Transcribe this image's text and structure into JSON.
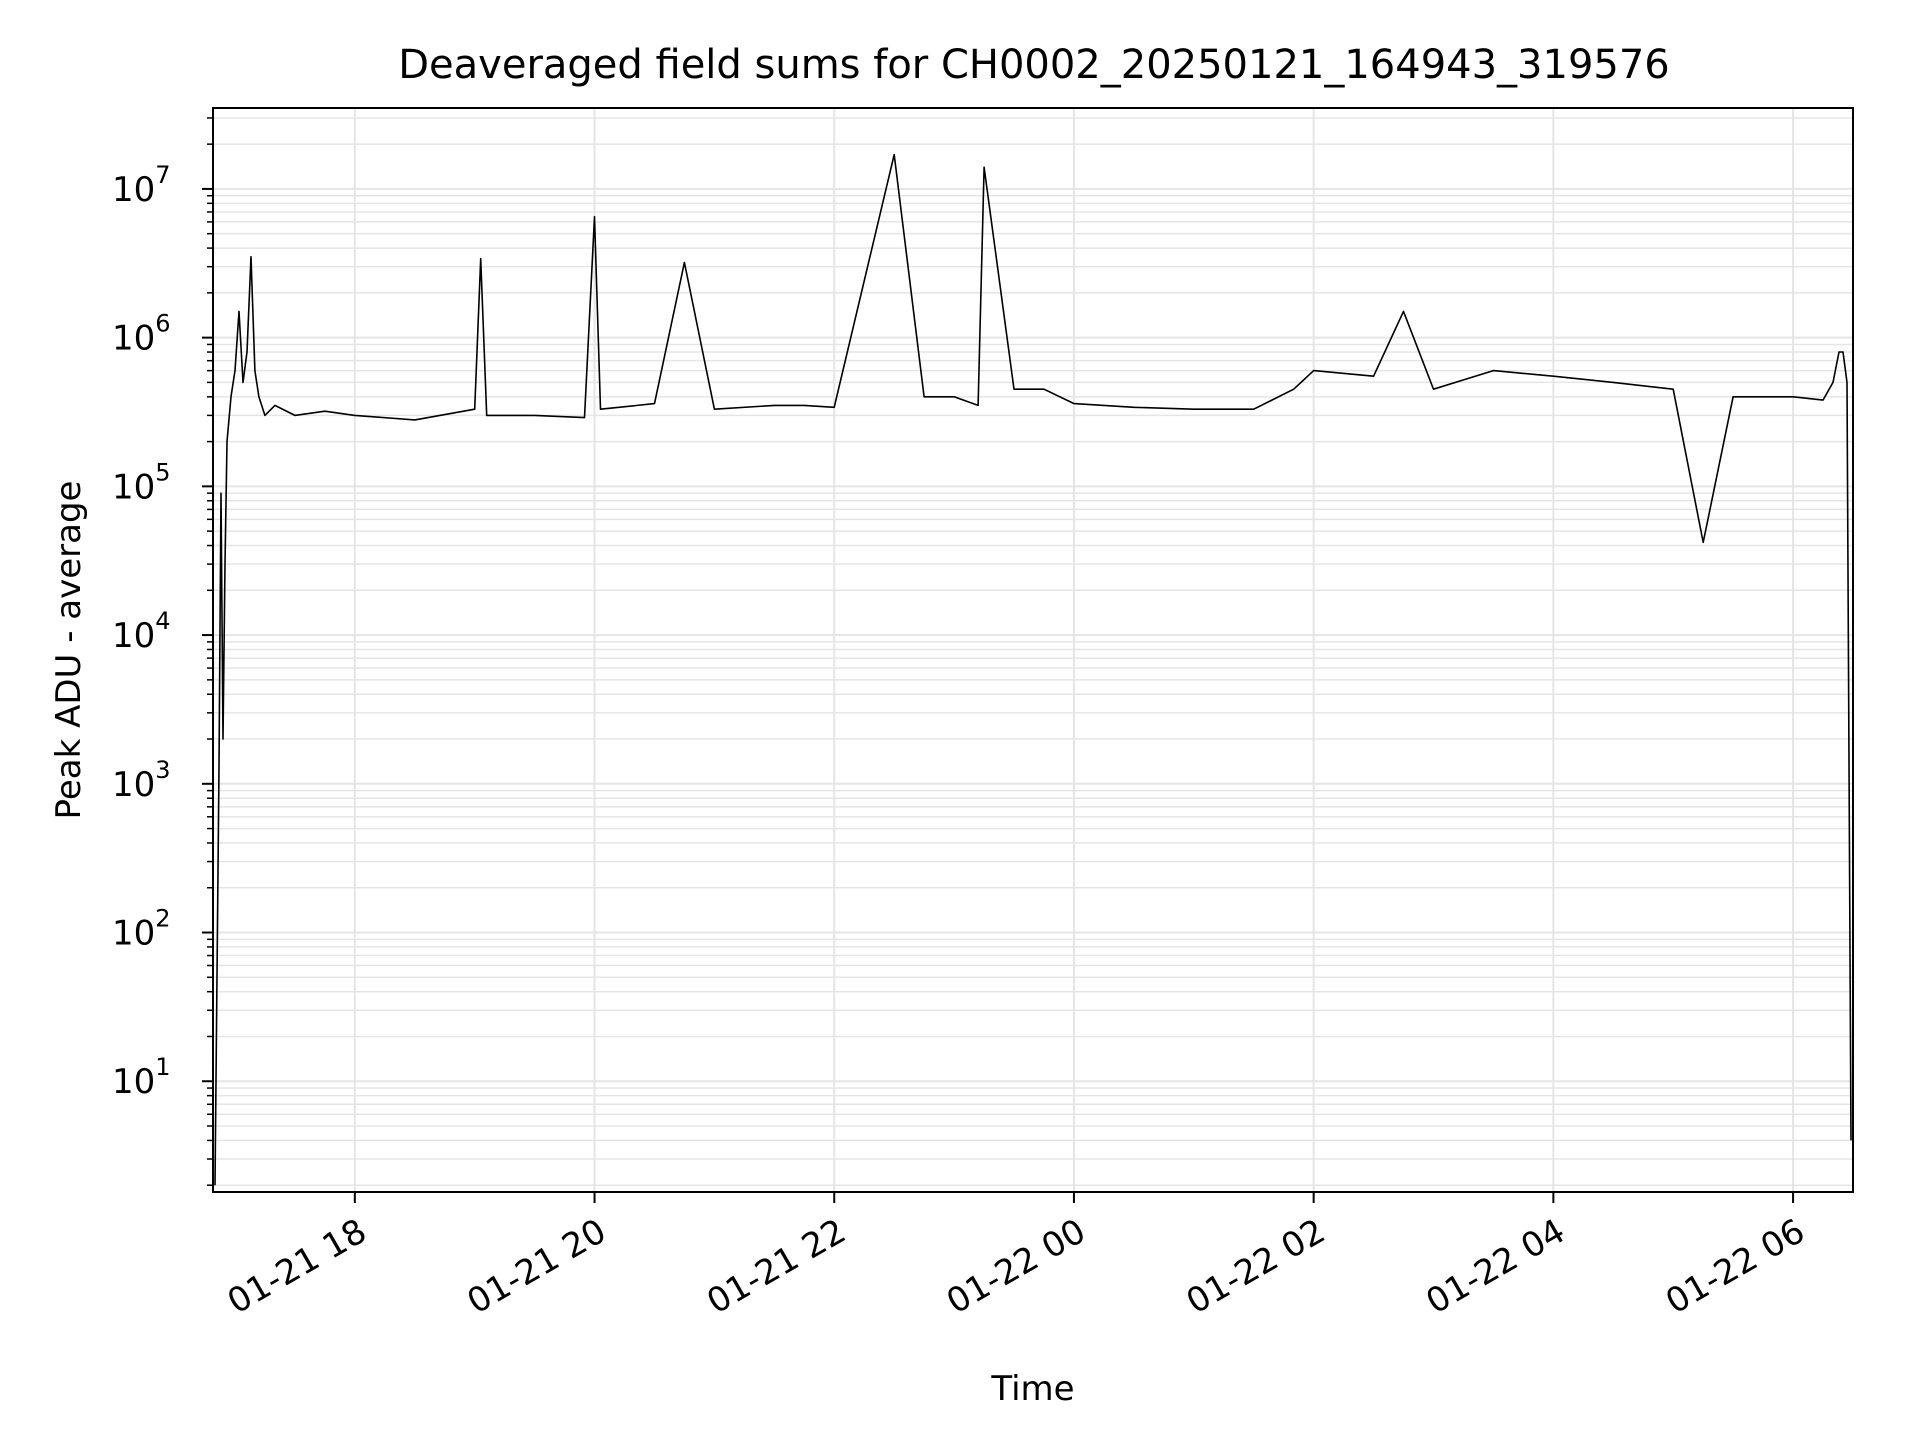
{
  "chart_data": {
    "type": "line",
    "title": "Deaveraged field sums for CH0002_20250121_164943_319576",
    "xlabel": "Time",
    "ylabel": "Peak ADU - average",
    "yscale": "log",
    "grid": true,
    "line_color": "#000000",
    "grid_color": "#e5e5e5",
    "xlim": [
      "2025-01-21 16:49",
      "2025-01-22 06:30"
    ],
    "ylim": [
      1.8,
      35000000
    ],
    "x_ticks": [
      {
        "value": "2025-01-21 18:00",
        "label": "01-21 18"
      },
      {
        "value": "2025-01-21 20:00",
        "label": "01-21 20"
      },
      {
        "value": "2025-01-21 22:00",
        "label": "01-21 22"
      },
      {
        "value": "2025-01-22 00:00",
        "label": "01-22 00"
      },
      {
        "value": "2025-01-22 02:00",
        "label": "01-22 02"
      },
      {
        "value": "2025-01-22 04:00",
        "label": "01-22 04"
      },
      {
        "value": "2025-01-22 06:00",
        "label": "01-22 06"
      }
    ],
    "y_ticks": [
      {
        "value": 10,
        "base": "10",
        "exp": "1"
      },
      {
        "value": 100,
        "base": "10",
        "exp": "2"
      },
      {
        "value": 1000,
        "base": "10",
        "exp": "3"
      },
      {
        "value": 10000,
        "base": "10",
        "exp": "4"
      },
      {
        "value": 100000,
        "base": "10",
        "exp": "5"
      },
      {
        "value": 1000000,
        "base": "10",
        "exp": "6"
      },
      {
        "value": 10000000,
        "base": "10",
        "exp": "7"
      }
    ],
    "series": [
      {
        "x": [
          "2025-01-21 16:50",
          "2025-01-21 16:52",
          "2025-01-21 16:53",
          "2025-01-21 16:54",
          "2025-01-21 16:55",
          "2025-01-21 16:56",
          "2025-01-21 16:58",
          "2025-01-21 17:00",
          "2025-01-21 17:02",
          "2025-01-21 17:04",
          "2025-01-21 17:06",
          "2025-01-21 17:08",
          "2025-01-21 17:10",
          "2025-01-21 17:12",
          "2025-01-21 17:15",
          "2025-01-21 17:20",
          "2025-01-21 17:30",
          "2025-01-21 17:45",
          "2025-01-21 18:00",
          "2025-01-21 18:30",
          "2025-01-21 19:00",
          "2025-01-21 19:03",
          "2025-01-21 19:06",
          "2025-01-21 19:30",
          "2025-01-21 19:55",
          "2025-01-21 20:00",
          "2025-01-21 20:03",
          "2025-01-21 20:30",
          "2025-01-21 20:45",
          "2025-01-21 21:00",
          "2025-01-21 21:30",
          "2025-01-21 21:45",
          "2025-01-21 22:00",
          "2025-01-21 22:30",
          "2025-01-21 22:45",
          "2025-01-21 23:00",
          "2025-01-21 23:12",
          "2025-01-21 23:15",
          "2025-01-21 23:30",
          "2025-01-21 23:45",
          "2025-01-22 00:00",
          "2025-01-22 00:30",
          "2025-01-22 01:00",
          "2025-01-22 01:30",
          "2025-01-22 01:50",
          "2025-01-22 02:00",
          "2025-01-22 02:30",
          "2025-01-22 02:45",
          "2025-01-22 03:00",
          "2025-01-22 03:30",
          "2025-01-22 04:00",
          "2025-01-22 04:30",
          "2025-01-22 05:00",
          "2025-01-22 05:15",
          "2025-01-22 05:30",
          "2025-01-22 06:00",
          "2025-01-22 06:15",
          "2025-01-22 06:20",
          "2025-01-22 06:23",
          "2025-01-22 06:25",
          "2025-01-22 06:27",
          "2025-01-22 06:29"
        ],
        "y": [
          2,
          1300,
          90000,
          2000,
          30000,
          200000,
          400000,
          600000,
          1500000,
          500000,
          800000,
          3500000,
          600000,
          400000,
          300000,
          350000,
          300000,
          320000,
          300000,
          280000,
          330000,
          3400000,
          300000,
          300000,
          290000,
          6500000,
          330000,
          360000,
          3200000,
          330000,
          350000,
          350000,
          340000,
          17000000,
          400000,
          400000,
          350000,
          14000000,
          450000,
          450000,
          360000,
          340000,
          330000,
          330000,
          450000,
          600000,
          550000,
          1500000,
          450000,
          600000,
          550000,
          500000,
          450000,
          42000,
          400000,
          400000,
          380000,
          500000,
          800000,
          800000,
          500000,
          4
        ]
      }
    ]
  }
}
